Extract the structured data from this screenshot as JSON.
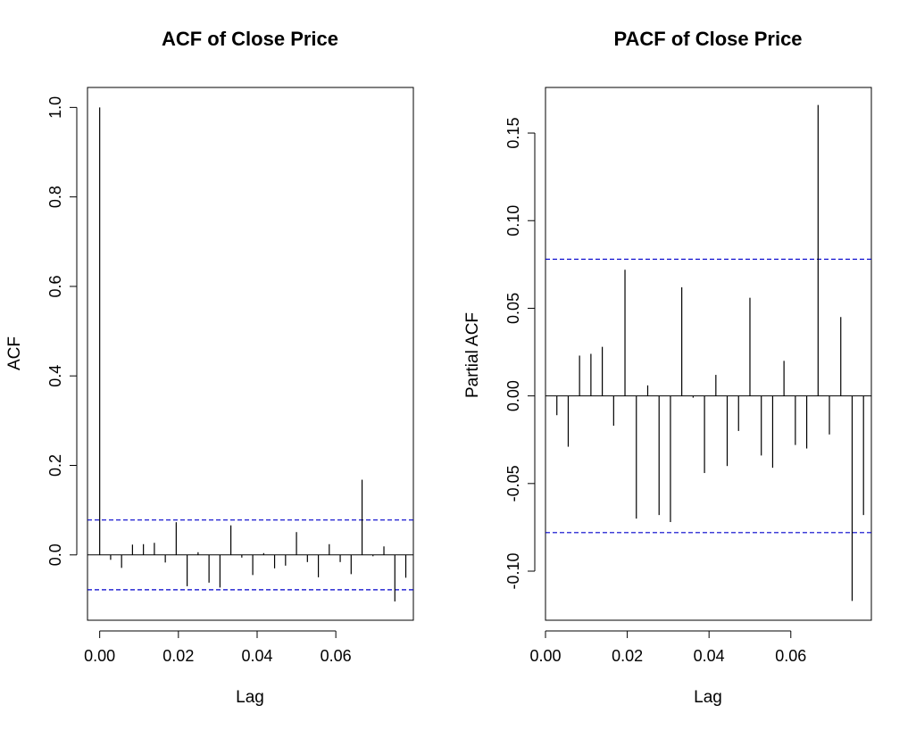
{
  "chart_data": [
    {
      "type": "bar",
      "title": "ACF of Close Price",
      "xlabel": "Lag",
      "ylabel": "ACF",
      "xlim": [
        -0.0031,
        0.0797
      ],
      "ylim": [
        -0.146,
        1.0446
      ],
      "xticks": [
        0.0,
        0.02,
        0.04,
        0.06
      ],
      "xtick_labels": [
        "0.00",
        "0.02",
        "0.04",
        "0.06"
      ],
      "yticks": [
        0.0,
        0.2,
        0.4,
        0.6,
        0.8,
        1.0
      ],
      "ytick_labels": [
        "0.0",
        "0.2",
        "0.4",
        "0.6",
        "0.8",
        "1.0"
      ],
      "ci": 0.078,
      "ci_color": "#0000cc",
      "bar_color": "#000000",
      "x": [
        0.0,
        0.00278,
        0.00556,
        0.00833,
        0.01111,
        0.01389,
        0.01667,
        0.01944,
        0.02222,
        0.025,
        0.02778,
        0.03056,
        0.03333,
        0.03611,
        0.03889,
        0.04167,
        0.04444,
        0.04722,
        0.05,
        0.05278,
        0.05556,
        0.05833,
        0.06111,
        0.06389,
        0.06667,
        0.06944,
        0.07222,
        0.075,
        0.07778
      ],
      "values": [
        1.0,
        -0.011,
        -0.029,
        0.023,
        0.024,
        0.027,
        -0.017,
        0.073,
        -0.07,
        0.006,
        -0.062,
        -0.073,
        0.066,
        -0.006,
        -0.045,
        0.004,
        -0.03,
        -0.024,
        0.051,
        -0.016,
        -0.05,
        0.024,
        -0.016,
        -0.043,
        0.168,
        -0.003,
        0.019,
        -0.104,
        -0.051
      ]
    },
    {
      "type": "bar",
      "title": "PACF of Close Price",
      "xlabel": "Lag",
      "ylabel": "Partial ACF",
      "xlim": [
        0.0,
        0.0797
      ],
      "ylim": [
        -0.128,
        0.176
      ],
      "xticks": [
        0.0,
        0.02,
        0.04,
        0.06
      ],
      "xtick_labels": [
        "0.00",
        "0.02",
        "0.04",
        "0.06"
      ],
      "yticks": [
        -0.1,
        -0.05,
        0.0,
        0.05,
        0.1,
        0.15
      ],
      "ytick_labels": [
        "-0.10",
        "-0.05",
        "0.00",
        "0.05",
        "0.10",
        "0.15"
      ],
      "ci": 0.078,
      "ci_color": "#0000cc",
      "bar_color": "#000000",
      "x": [
        0.00278,
        0.00556,
        0.00833,
        0.01111,
        0.01389,
        0.01667,
        0.01944,
        0.02222,
        0.025,
        0.02778,
        0.03056,
        0.03333,
        0.03611,
        0.03889,
        0.04167,
        0.04444,
        0.04722,
        0.05,
        0.05278,
        0.05556,
        0.05833,
        0.06111,
        0.06389,
        0.06667,
        0.06944,
        0.07222,
        0.075,
        0.07778
      ],
      "values": [
        -0.011,
        -0.029,
        0.023,
        0.024,
        0.028,
        -0.017,
        0.072,
        -0.07,
        0.006,
        -0.068,
        -0.072,
        0.062,
        -0.001,
        -0.044,
        0.012,
        -0.04,
        -0.02,
        0.056,
        -0.034,
        -0.041,
        0.02,
        -0.028,
        -0.03,
        0.166,
        -0.022,
        0.045,
        -0.117,
        -0.068
      ]
    }
  ]
}
